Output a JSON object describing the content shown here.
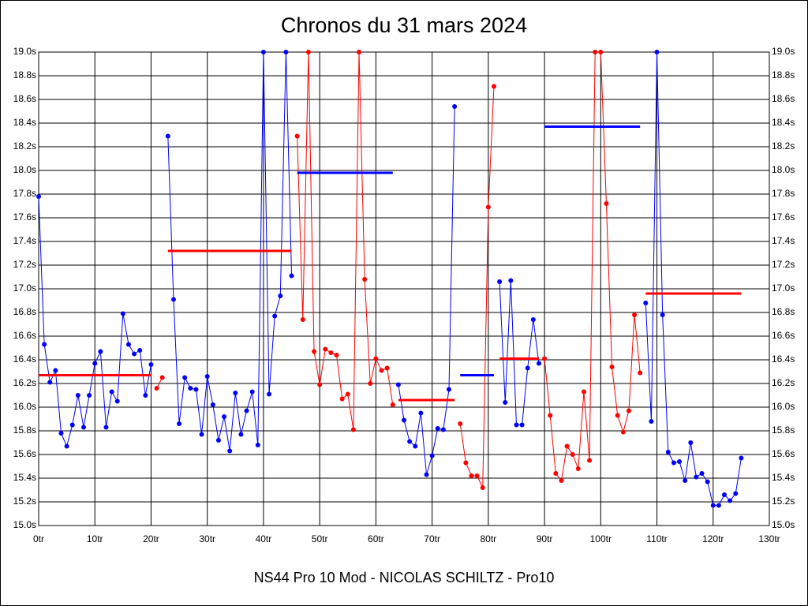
{
  "chart_data": {
    "type": "line",
    "title": "Chronos du 31 mars 2024",
    "x_label": "NS44 Pro 10 Mod - NICOLAS SCHILTZ - Pro10",
    "xlim": [
      0,
      130
    ],
    "xticks": [
      {
        "value": 0,
        "label": "0tr"
      },
      {
        "value": 10,
        "label": "10tr"
      },
      {
        "value": 20,
        "label": "20tr"
      },
      {
        "value": 30,
        "label": "30tr"
      },
      {
        "value": 40,
        "label": "40tr"
      },
      {
        "value": 50,
        "label": "50tr"
      },
      {
        "value": 60,
        "label": "60tr"
      },
      {
        "value": 70,
        "label": "70tr"
      },
      {
        "value": 80,
        "label": "80tr"
      },
      {
        "value": 90,
        "label": "90tr"
      },
      {
        "value": 100,
        "label": "100tr"
      },
      {
        "value": 110,
        "label": "110tr"
      },
      {
        "value": 120,
        "label": "120tr"
      },
      {
        "value": 130,
        "label": "130tr"
      }
    ],
    "ylim": [
      15.0,
      19.0
    ],
    "yticks": [
      {
        "value": 15.0,
        "label": "15.0s"
      },
      {
        "value": 15.2,
        "label": "15.2s"
      },
      {
        "value": 15.4,
        "label": "15.4s"
      },
      {
        "value": 15.6,
        "label": "15.6s"
      },
      {
        "value": 15.8,
        "label": "15.8s"
      },
      {
        "value": 16.0,
        "label": "16.0s"
      },
      {
        "value": 16.2,
        "label": "16.2s"
      },
      {
        "value": 16.4,
        "label": "16.4s"
      },
      {
        "value": 16.6,
        "label": "16.6s"
      },
      {
        "value": 16.8,
        "label": "16.8s"
      },
      {
        "value": 17.0,
        "label": "17.0s"
      },
      {
        "value": 17.2,
        "label": "17.2s"
      },
      {
        "value": 17.4,
        "label": "17.4s"
      },
      {
        "value": 17.6,
        "label": "17.6s"
      },
      {
        "value": 17.8,
        "label": "17.8s"
      },
      {
        "value": 18.0,
        "label": "18.0s"
      },
      {
        "value": 18.2,
        "label": "18.2s"
      },
      {
        "value": 18.4,
        "label": "18.4s"
      },
      {
        "value": 18.6,
        "label": "18.6s"
      },
      {
        "value": 18.8,
        "label": "18.8s"
      },
      {
        "value": 19.0,
        "label": "19.0s"
      }
    ],
    "grid": true,
    "series": [
      {
        "color": "#0000ff",
        "x": [
          0,
          1,
          2,
          3,
          4,
          5,
          6,
          7,
          8,
          9,
          10,
          11,
          12,
          13,
          14,
          15,
          16,
          17,
          18,
          19,
          20
        ],
        "values": [
          17.78,
          16.53,
          16.21,
          16.31,
          15.78,
          15.67,
          15.85,
          16.1,
          15.83,
          16.1,
          16.37,
          16.47,
          15.83,
          16.13,
          16.05,
          16.79,
          16.53,
          16.45,
          16.48,
          16.1,
          16.36
        ]
      },
      {
        "color": "#ff0000",
        "x": [
          21,
          22
        ],
        "values": [
          16.16,
          16.25
        ]
      },
      {
        "color": "#0000ff",
        "x": [
          23,
          24,
          25,
          26,
          27,
          28,
          29,
          30,
          31,
          32,
          33,
          34,
          35,
          36,
          37,
          38,
          39,
          40,
          41,
          42,
          43,
          44,
          45
        ],
        "values": [
          18.29,
          16.91,
          15.86,
          16.25,
          16.16,
          16.15,
          15.77,
          16.26,
          16.02,
          15.72,
          15.92,
          15.63,
          16.12,
          15.77,
          15.97,
          16.13,
          15.68,
          19.0,
          16.11,
          16.77,
          16.94,
          19.0,
          17.11
        ]
      },
      {
        "color": "#ff0000",
        "x": [
          46,
          47,
          48,
          49,
          50,
          51,
          52,
          53,
          54,
          55,
          56,
          57,
          58,
          59,
          60,
          61,
          62,
          63
        ],
        "values": [
          18.29,
          16.74,
          19.0,
          16.47,
          16.19,
          16.49,
          16.46,
          16.44,
          16.07,
          16.11,
          15.81,
          19.0,
          17.08,
          16.2,
          16.41,
          16.31,
          16.33,
          16.02
        ]
      },
      {
        "color": "#0000ff",
        "x": [
          64,
          65,
          66,
          67,
          68,
          69,
          70,
          71,
          72,
          73,
          74
        ],
        "values": [
          16.19,
          15.89,
          15.71,
          15.67,
          15.95,
          15.43,
          15.59,
          15.82,
          15.81,
          16.15,
          18.54
        ]
      },
      {
        "color": "#ff0000",
        "x": [
          75,
          76,
          77,
          78,
          79,
          80,
          81
        ],
        "values": [
          15.86,
          15.53,
          15.42,
          15.42,
          15.32,
          17.69,
          18.71
        ]
      },
      {
        "color": "#0000ff",
        "x": [
          82,
          83,
          84,
          85,
          86,
          87,
          88,
          89
        ],
        "values": [
          17.06,
          16.04,
          17.07,
          15.85,
          15.85,
          16.33,
          16.74,
          16.37
        ]
      },
      {
        "color": "#ff0000",
        "x": [
          90,
          91,
          92,
          93,
          94,
          95,
          96,
          97,
          98,
          99,
          100,
          101,
          102,
          103,
          104,
          105,
          106,
          107
        ],
        "values": [
          16.41,
          15.93,
          15.44,
          15.38,
          15.67,
          15.6,
          15.48,
          16.13,
          15.55,
          19.0,
          19.0,
          17.72,
          16.34,
          15.93,
          15.79,
          15.97,
          16.78,
          16.29
        ]
      },
      {
        "color": "#0000ff",
        "x": [
          108,
          109,
          110,
          111,
          112,
          113,
          114,
          115,
          116,
          117,
          118,
          119,
          120,
          121,
          122,
          123,
          124,
          125
        ],
        "values": [
          16.88,
          15.88,
          19.0,
          16.78,
          15.62,
          15.53,
          15.54,
          15.38,
          15.7,
          15.41,
          15.44,
          15.37,
          15.17,
          15.17,
          15.26,
          15.21,
          15.27,
          15.57
        ]
      }
    ],
    "averages": [
      {
        "color": "#ff0000",
        "x": [
          0,
          20
        ],
        "value": 16.27
      },
      {
        "color": "#ff0000",
        "x": [
          23,
          45
        ],
        "value": 17.32
      },
      {
        "color": "#0000ff",
        "x": [
          46,
          63
        ],
        "value": 17.98
      },
      {
        "color": "#ff0000",
        "x": [
          64,
          74
        ],
        "value": 16.06
      },
      {
        "color": "#0000ff",
        "x": [
          75,
          81
        ],
        "value": 16.27
      },
      {
        "color": "#ff0000",
        "x": [
          82,
          89
        ],
        "value": 16.41
      },
      {
        "color": "#0000ff",
        "x": [
          90,
          107
        ],
        "value": 18.37
      },
      {
        "color": "#ff0000",
        "x": [
          108,
          125
        ],
        "value": 16.96
      }
    ]
  }
}
